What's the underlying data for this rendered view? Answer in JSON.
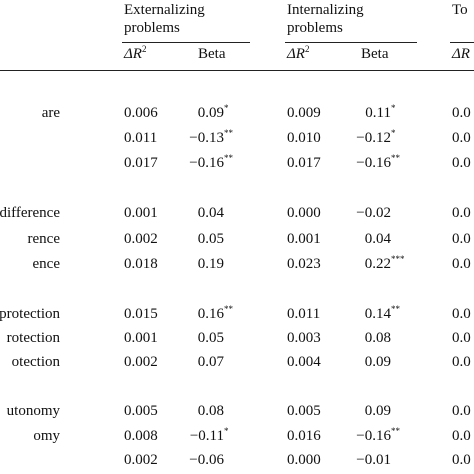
{
  "header": {
    "groups": [
      {
        "label_line1": "Externalizing",
        "label_line2": "problems"
      },
      {
        "label_line1": "Internalizing",
        "label_line2": "problems"
      },
      {
        "label_line1": "To",
        "label_line2": ""
      }
    ],
    "delta_r2": "ΔR",
    "delta_r2_sup": "2",
    "beta": "Beta",
    "third_partial": "ΔR"
  },
  "rows": [
    {
      "label": "are",
      "ext_r2": "0.006",
      "ext_beta": "0.09",
      "ext_sig": "*",
      "int_r2": "0.009",
      "int_beta": "0.11",
      "int_sig": "*",
      "tot": "0.0"
    },
    {
      "label": "",
      "ext_r2": "0.011",
      "ext_beta": "−0.13",
      "ext_sig": "**",
      "int_r2": "0.010",
      "int_beta": "−0.12",
      "int_sig": "*",
      "tot": "0.0"
    },
    {
      "label": "",
      "ext_r2": "0.017",
      "ext_beta": "−0.16",
      "ext_sig": "**",
      "int_r2": "0.017",
      "int_beta": "−0.16",
      "int_sig": "**",
      "tot": "0.0"
    },
    {
      "label": "ndifference",
      "ext_r2": "0.001",
      "ext_beta": "0.04",
      "ext_sig": "",
      "int_r2": "0.000",
      "int_beta": "−0.02",
      "int_sig": "",
      "tot": "0.0"
    },
    {
      "label": "rence",
      "ext_r2": "0.002",
      "ext_beta": "0.05",
      "ext_sig": "",
      "int_r2": "0.001",
      "int_beta": "0.04",
      "int_sig": "",
      "tot": "0.0"
    },
    {
      "label": "ence",
      "ext_r2": "0.018",
      "ext_beta": "0.19",
      "ext_sig": "",
      "int_r2": "0.023",
      "int_beta": "0.22",
      "int_sig": "***",
      "tot": "0.0"
    },
    {
      "label": "verprotection",
      "ext_r2": "0.015",
      "ext_beta": "0.16",
      "ext_sig": "**",
      "int_r2": "0.011",
      "int_beta": "0.14",
      "int_sig": "**",
      "tot": "0.0"
    },
    {
      "label": "rotection",
      "ext_r2": "0.001",
      "ext_beta": "0.05",
      "ext_sig": "",
      "int_r2": "0.003",
      "int_beta": "0.08",
      "int_sig": "",
      "tot": "0.0"
    },
    {
      "label": "otection",
      "ext_r2": "0.002",
      "ext_beta": "0.07",
      "ext_sig": "",
      "int_r2": "0.004",
      "int_beta": "0.09",
      "int_sig": "",
      "tot": "0.0"
    },
    {
      "label": "utonomy",
      "ext_r2": "0.005",
      "ext_beta": "0.08",
      "ext_sig": "",
      "int_r2": "0.005",
      "int_beta": "0.09",
      "int_sig": "",
      "tot": "0.0"
    },
    {
      "label": "omy",
      "ext_r2": "0.008",
      "ext_beta": "−0.11",
      "ext_sig": "*",
      "int_r2": "0.016",
      "int_beta": "−0.16",
      "int_sig": "**",
      "tot": "0.0"
    },
    {
      "label": "",
      "ext_r2": "0.002",
      "ext_beta": "−0.06",
      "ext_sig": "",
      "int_r2": "0.000",
      "int_beta": "−0.01",
      "int_sig": "",
      "tot": "0.0"
    }
  ]
}
